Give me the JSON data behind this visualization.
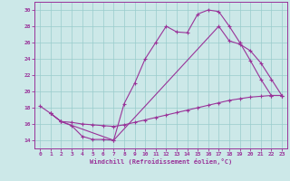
{
  "bg_color": "#cce8e8",
  "grid_color": "#99cccc",
  "line_color": "#993399",
  "xlabel": "Windchill (Refroidissement éolien,°C)",
  "xlim_min": -0.5,
  "xlim_max": 23.5,
  "ylim_min": 13.0,
  "ylim_max": 31.0,
  "yticks": [
    14,
    16,
    18,
    20,
    22,
    24,
    26,
    28,
    30
  ],
  "xticks": [
    0,
    1,
    2,
    3,
    4,
    5,
    6,
    7,
    8,
    9,
    10,
    11,
    12,
    13,
    14,
    15,
    16,
    17,
    18,
    19,
    20,
    21,
    22,
    23
  ],
  "curve1_x": [
    0,
    1,
    2,
    3,
    4,
    5,
    6,
    7,
    8,
    9,
    10,
    11,
    12,
    13,
    14,
    15,
    16,
    17,
    18,
    19,
    20,
    21,
    22,
    23
  ],
  "curve1_y": [
    18.2,
    17.3,
    16.3,
    15.8,
    14.5,
    14.1,
    14.1,
    14.0,
    18.5,
    21.0,
    24.0,
    26.0,
    28.0,
    27.3,
    27.2,
    29.5,
    30.0,
    29.8,
    28.0,
    26.0,
    23.8,
    21.5,
    19.5,
    19.5
  ],
  "curve2_x": [
    1,
    2,
    3,
    4,
    5,
    6,
    7,
    8,
    9,
    10,
    11,
    12,
    13,
    14,
    15,
    16,
    17,
    18,
    19,
    20,
    21,
    22,
    23
  ],
  "curve2_y": [
    17.3,
    16.3,
    16.2,
    16.0,
    15.9,
    15.8,
    15.7,
    15.9,
    16.2,
    16.5,
    16.8,
    17.1,
    17.4,
    17.7,
    18.0,
    18.3,
    18.6,
    18.9,
    19.1,
    19.3,
    19.4,
    19.5,
    19.5
  ],
  "curve3_x": [
    1,
    2,
    7,
    17,
    18,
    19,
    20,
    21,
    22,
    23
  ],
  "curve3_y": [
    17.3,
    16.3,
    14.0,
    28.0,
    26.2,
    25.8,
    25.0,
    23.5,
    21.5,
    19.5
  ]
}
